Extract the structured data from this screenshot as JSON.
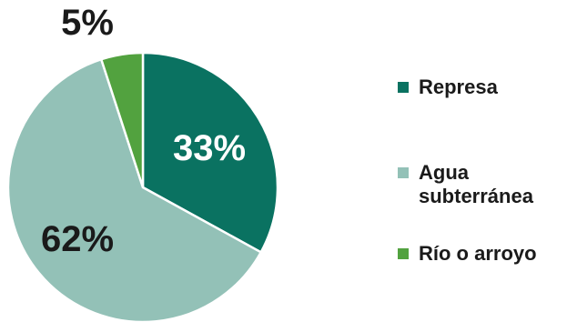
{
  "chart_data": {
    "type": "pie",
    "categories": [
      "Represa",
      "Agua subterránea",
      "Río o arroyo"
    ],
    "values": [
      33,
      62,
      5
    ],
    "labels": [
      "33%",
      "62%",
      "5%"
    ],
    "colors": [
      "#0a7261",
      "#93c1b7",
      "#52a23f"
    ],
    "label_colors": [
      "#ffffff",
      "#1a1a1a",
      "#1a1a1a"
    ],
    "start_angle_deg": 0,
    "direction": "clockwise",
    "legend_position": "right"
  },
  "legend": {
    "items": [
      {
        "label": "Represa",
        "color": "#0a7261"
      },
      {
        "label": "Agua subterránea",
        "color": "#93c1b7"
      },
      {
        "label": "Río o arroyo",
        "color": "#52a23f"
      }
    ]
  }
}
